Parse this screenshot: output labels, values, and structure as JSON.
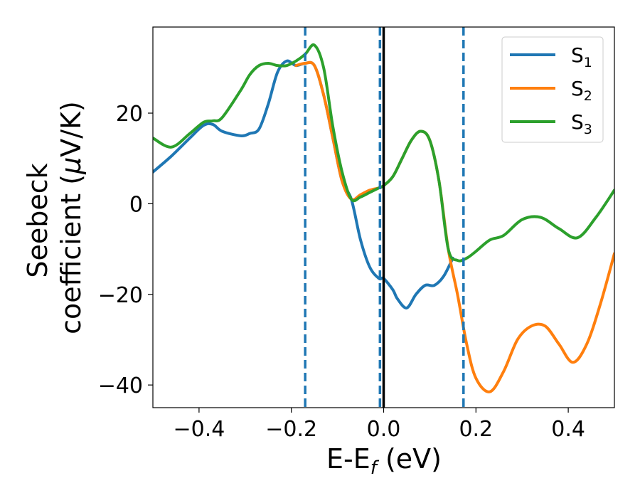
{
  "chart_data": {
    "type": "line",
    "xlabel": {
      "main": "E-E",
      "sub": "f",
      "unit": " (eV)"
    },
    "ylabel": {
      "line1": "Seebeck",
      "line2_prefix": "coefficient  (",
      "line2_mu": "μ",
      "line2_suffix": "V/K)"
    },
    "xlim": [
      -0.5,
      0.5
    ],
    "ylim": [
      -45,
      39
    ],
    "xticks": [
      -0.4,
      -0.2,
      0.0,
      0.2,
      0.4
    ],
    "xtick_labels": [
      "−0.4",
      "−0.2",
      "0.0",
      "0.2",
      "0.4"
    ],
    "yticks": [
      -40,
      -20,
      0,
      20
    ],
    "ytick_labels": [
      "−40",
      "−20",
      "0",
      "20"
    ],
    "grid": false,
    "legend_position": "top-right",
    "vertical_lines": [
      {
        "x": -0.17,
        "style": "dashed",
        "color": "#1f77b4"
      },
      {
        "x": -0.008,
        "style": "dashed",
        "color": "#1f77b4"
      },
      {
        "x": 0.173,
        "style": "dashed",
        "color": "#1f77b4"
      },
      {
        "x": 0.0,
        "style": "solid",
        "color": "#000000"
      }
    ],
    "series": [
      {
        "name": "S",
        "name_sub": "1",
        "color": "#1f77b4",
        "x": [
          -0.5,
          -0.46,
          -0.42,
          -0.39,
          -0.37,
          -0.35,
          -0.31,
          -0.29,
          -0.27,
          -0.25,
          -0.23,
          -0.21,
          -0.19,
          -0.17,
          -0.15,
          -0.13,
          -0.11,
          -0.09,
          -0.07,
          -0.05,
          -0.03,
          -0.01,
          0.0,
          0.02,
          0.03,
          0.05,
          0.07,
          0.09,
          0.11,
          0.13,
          0.15
        ],
        "y": [
          7,
          10.5,
          14.5,
          17.3,
          17.5,
          16,
          15,
          15.5,
          16.5,
          22,
          29,
          31.5,
          30.5,
          31,
          30.5,
          24,
          14.5,
          5,
          1,
          -8,
          -14,
          -16.5,
          -16.5,
          -19,
          -21,
          -23,
          -20,
          -18,
          -18,
          -16,
          -12
        ]
      },
      {
        "name": "S",
        "name_sub": "2",
        "color": "#ff7f0e",
        "x": [
          -0.19,
          -0.17,
          -0.15,
          -0.13,
          -0.11,
          -0.09,
          -0.07,
          -0.05,
          -0.03,
          -0.01,
          0.0,
          0.02,
          0.04,
          0.06,
          0.08,
          0.1,
          0.12,
          0.14,
          0.16,
          0.18,
          0.2,
          0.23,
          0.26,
          0.29,
          0.32,
          0.35,
          0.38,
          0.41,
          0.44,
          0.47,
          0.5
        ],
        "y": [
          30.5,
          31,
          30.5,
          24,
          14.5,
          5,
          1,
          2,
          3,
          3.5,
          4,
          6,
          10,
          14,
          16,
          14,
          5,
          -10,
          -20,
          -31,
          -38.5,
          -41.5,
          -37,
          -30,
          -27,
          -27,
          -31,
          -35,
          -31,
          -22,
          -11
        ]
      },
      {
        "name": "S",
        "name_sub": "3",
        "color": "#2ca02c",
        "x": [
          -0.5,
          -0.46,
          -0.42,
          -0.39,
          -0.37,
          -0.35,
          -0.31,
          -0.29,
          -0.27,
          -0.25,
          -0.23,
          -0.21,
          -0.19,
          -0.17,
          -0.15,
          -0.13,
          -0.11,
          -0.09,
          -0.07,
          -0.05,
          -0.03,
          -0.01,
          0.0,
          0.02,
          0.04,
          0.06,
          0.08,
          0.1,
          0.12,
          0.14,
          0.16,
          0.18,
          0.2,
          0.23,
          0.26,
          0.3,
          0.34,
          0.38,
          0.42,
          0.46,
          0.5
        ],
        "y": [
          14.5,
          12.5,
          15.5,
          18,
          18.3,
          19,
          25,
          28.5,
          30.5,
          31,
          30.5,
          30.5,
          31.5,
          33,
          35,
          30,
          17,
          7,
          1,
          1.5,
          2.5,
          3.5,
          4,
          6,
          10,
          14,
          16,
          14,
          5,
          -10,
          -12.5,
          -12,
          -10.5,
          -8,
          -7,
          -3.5,
          -3,
          -5.5,
          -7.5,
          -3,
          3
        ]
      }
    ]
  }
}
